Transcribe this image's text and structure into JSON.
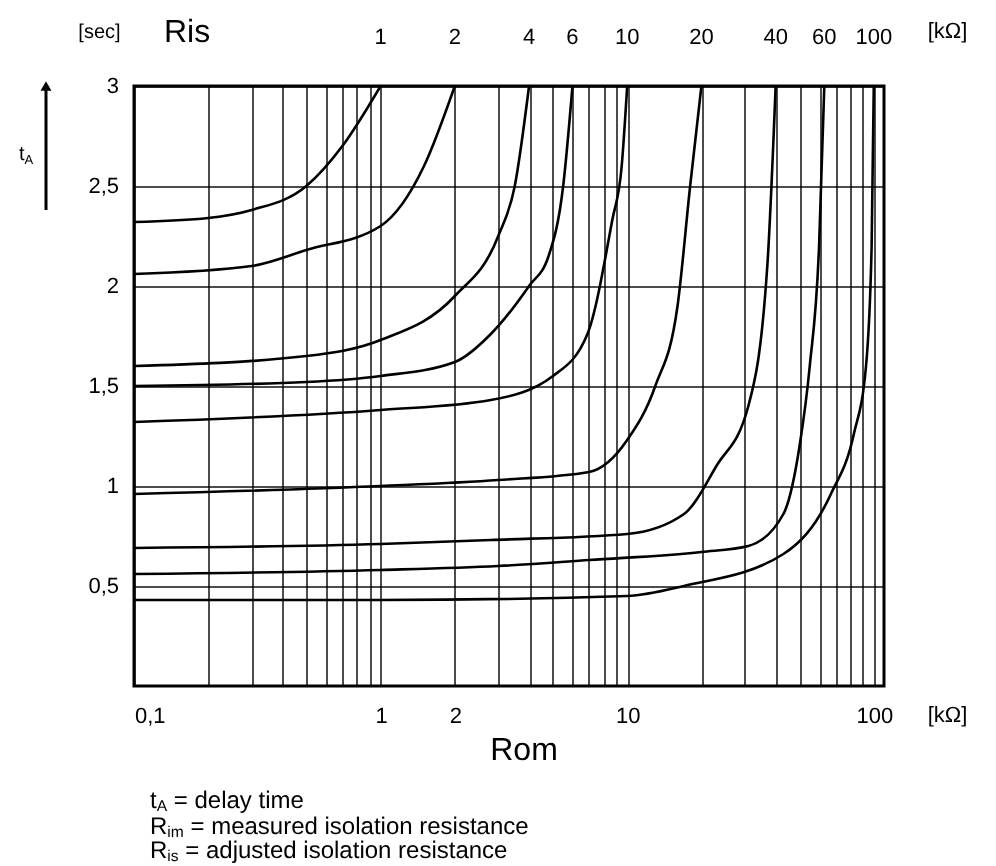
{
  "chart_data": {
    "type": "line",
    "xlabel": "Rom",
    "legend_title": "Ris",
    "log": "x",
    "grid": true,
    "line_style": "solid",
    "marker": "none",
    "xlim": [
      0.1,
      110
    ],
    "ylim": [
      0,
      3
    ],
    "xticks": [
      {
        "value": 0.1,
        "label": "0,1"
      },
      {
        "value": 0.2,
        "label": null
      },
      {
        "value": 0.3,
        "label": null
      },
      {
        "value": 0.4,
        "label": null
      },
      {
        "value": 0.5,
        "label": null
      },
      {
        "value": 0.6,
        "label": null
      },
      {
        "value": 0.7,
        "label": null
      },
      {
        "value": 0.8,
        "label": null
      },
      {
        "value": 0.9,
        "label": null
      },
      1,
      2,
      {
        "value": 3,
        "label": null
      },
      {
        "value": 4,
        "label": null
      },
      {
        "value": 5,
        "label": null
      },
      {
        "value": 6,
        "label": null
      },
      {
        "value": 7,
        "label": null
      },
      {
        "value": 8,
        "label": null
      },
      {
        "value": 9,
        "label": null
      },
      10,
      {
        "value": 20,
        "label": null
      },
      {
        "value": 30,
        "label": null
      },
      {
        "value": 40,
        "label": null
      },
      {
        "value": 50,
        "label": null
      },
      {
        "value": 60,
        "label": null
      },
      {
        "value": 70,
        "label": null
      },
      {
        "value": 80,
        "label": null
      },
      {
        "value": 90,
        "label": null
      },
      100
    ],
    "yticks": [
      {
        "value": 0.5,
        "label": "0,5"
      },
      1,
      {
        "value": 1.5,
        "label": "1,5"
      },
      2,
      {
        "value": 2.5,
        "label": "2,5"
      },
      3
    ],
    "annotations": [
      "t$_{A}$",
      "[sec]",
      "[kΩ]",
      "[kΩ]",
      "t$_{A}$ = delay time",
      "R$_{im}$ = measured isolation resistance",
      "R$_{is}$ = adjusted isolation resistance"
    ],
    "series": [
      {
        "name": "1",
        "color": "#000000",
        "x": [
          0.1,
          0.2,
          0.3,
          0.5,
          0.7,
          1
        ],
        "values": [
          2.32,
          2.34,
          2.38,
          2.5,
          2.7,
          3
        ]
      },
      {
        "name": "2",
        "color": "#000000",
        "x": [
          0.1,
          0.3,
          0.5,
          1,
          1.5,
          2
        ],
        "values": [
          2.06,
          2.1,
          2.18,
          2.3,
          2.6,
          3
        ]
      },
      {
        "name": "4",
        "color": "#000000",
        "x": [
          0.1,
          0.5,
          1,
          2,
          3,
          3.5,
          4
        ],
        "values": [
          1.6,
          1.65,
          1.73,
          1.95,
          2.25,
          2.5,
          3
        ]
      },
      {
        "name": "6",
        "color": "#000000",
        "x": [
          0.1,
          0.5,
          1,
          2,
          2.8,
          4,
          4.8,
          5.5,
          6
        ],
        "values": [
          1.5,
          1.52,
          1.55,
          1.62,
          1.76,
          2.0,
          2.15,
          2.5,
          3
        ]
      },
      {
        "name": "10",
        "color": "#000000",
        "x": [
          0.1,
          1,
          2.8,
          5,
          6.9,
          8.7,
          9.5,
          10
        ],
        "values": [
          1.32,
          1.38,
          1.43,
          1.55,
          1.76,
          2.33,
          2.6,
          3
        ]
      },
      {
        "name": "20",
        "color": "#000000",
        "x": [
          0.1,
          1,
          3,
          7,
          10,
          13,
          16,
          18,
          20
        ],
        "values": [
          0.96,
          1.0,
          1.03,
          1.07,
          1.23,
          1.5,
          1.9,
          2.5,
          3
        ]
      },
      {
        "name": "40",
        "color": "#000000",
        "x": [
          0.1,
          1,
          2.8,
          10,
          17,
          23,
          31,
          37,
          40
        ],
        "values": [
          0.69,
          0.71,
          0.73,
          0.76,
          0.86,
          1.1,
          1.4,
          2.1,
          3
        ]
      },
      {
        "name": "60",
        "color": "#000000",
        "x": [
          0.1,
          1,
          3,
          7,
          20,
          31,
          43,
          50,
          55,
          60,
          63
        ],
        "values": [
          0.56,
          0.58,
          0.6,
          0.63,
          0.67,
          0.7,
          0.86,
          1.2,
          1.6,
          2.2,
          3
        ]
      },
      {
        "name": "100",
        "color": "#000000",
        "x": [
          0.1,
          1,
          10,
          17,
          43,
          67,
          83,
          93,
          98,
          100
        ],
        "values": [
          0.43,
          0.43,
          0.45,
          0.5,
          0.66,
          0.96,
          1.26,
          1.6,
          2.2,
          3
        ]
      }
    ]
  }
}
